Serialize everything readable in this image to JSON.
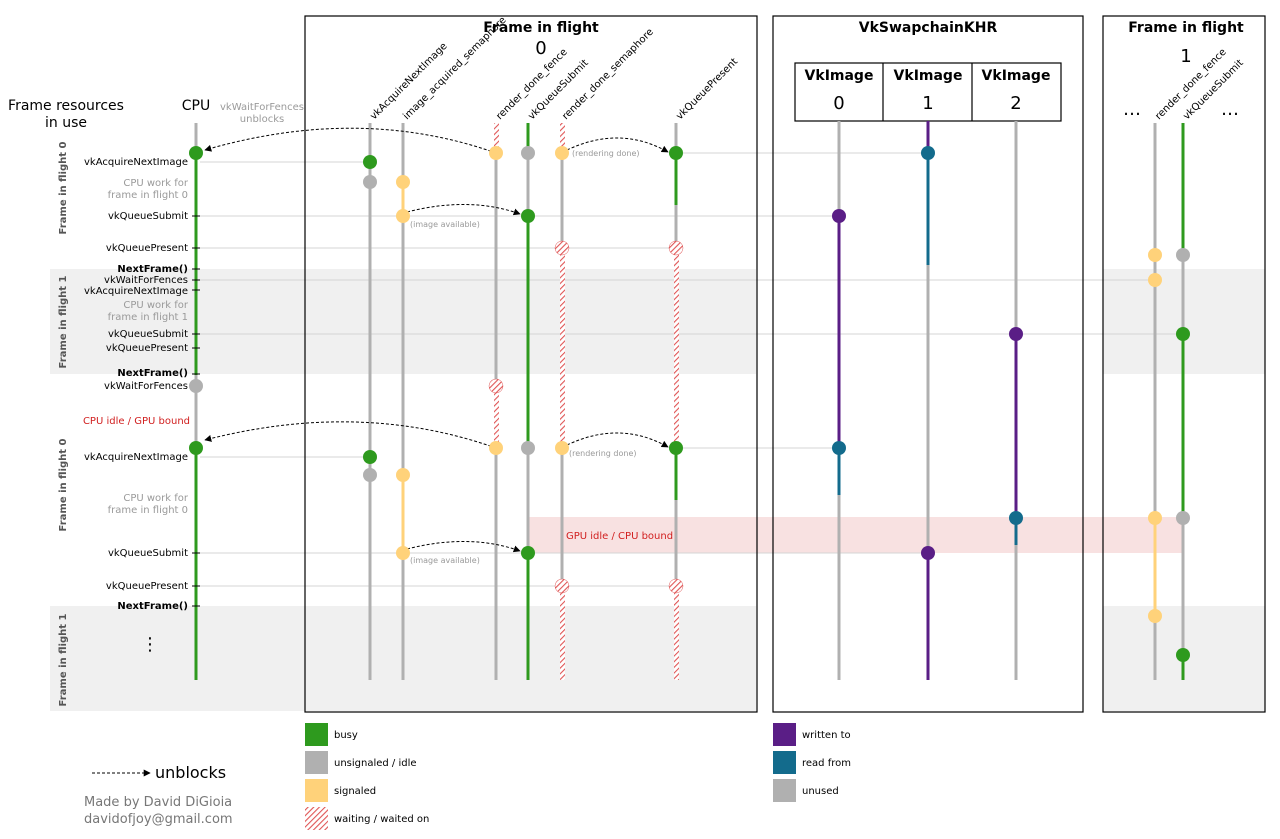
{
  "resources_title": "Frame resources\nin use",
  "cpu_label": "CPU",
  "wait_note": "vkWaitForFences\nunblocks",
  "frames": [
    {
      "title": "Frame in flight",
      "index": "0"
    },
    {
      "title": "Frame in flight",
      "index": "1"
    }
  ],
  "swapchain_title": "VkSwapchainKHR",
  "vkimage_label": "VkImage",
  "vkimage_indices": [
    "0",
    "1",
    "2"
  ],
  "ellipsis": "…",
  "cpu_vertical_dots": "⋮",
  "frame0_columns": [
    "vkAcquireNextImage",
    "image_acquired_semaphore",
    "render_done_fence",
    "vkQueueSubmit",
    "render_done_semaphore",
    "vkQueuePresent"
  ],
  "frame1_columns": [
    "render_done_fence",
    "vkQueueSubmit"
  ],
  "side_labels": [
    "Frame in flight 0",
    "Frame in flight 1",
    "Frame in flight 0",
    "Frame in flight 1"
  ],
  "left_labels": {
    "acquire": "vkAcquireNextImage",
    "cpu_work_f0": "CPU work for\nframe in flight 0",
    "cpu_work_f1": "CPU work for\nframe in flight 1",
    "submit": "vkQueueSubmit",
    "present": "vkQueuePresent",
    "next_frame": "NextFrame()",
    "wait_fences": "vkWaitForFences",
    "cpu_idle": "CPU idle / GPU bound"
  },
  "notes": {
    "rendering_done": "(rendering done)",
    "image_available": "(image available)",
    "gpu_idle": "GPU idle / CPU bound"
  },
  "legend": {
    "unblocks": "unblocks",
    "states": [
      {
        "label": "busy",
        "color": "#2e9a1e"
      },
      {
        "label": "unsignaled / idle",
        "color": "#b0b0b0"
      },
      {
        "label": "signaled",
        "color": "#ffd27a"
      },
      {
        "label": "waiting / waited on",
        "color": "#e05555"
      }
    ],
    "image_states": [
      {
        "label": "written to",
        "color": "#5a1e86"
      },
      {
        "label": "read from",
        "color": "#136b8c"
      },
      {
        "label": "unused",
        "color": "#b0b0b0"
      }
    ]
  },
  "credit": {
    "line1": "Made by David DiGioia",
    "line2": "davidofjoy@gmail.com"
  },
  "colors": {
    "busy": "#2e9a1e",
    "idle": "#b0b0b0",
    "signaled": "#ffd27a",
    "waiting": "#e05555",
    "written": "#5a1e86",
    "read": "#136b8c",
    "band": "#f0f0f0",
    "red_band": "#f8e1e1"
  }
}
